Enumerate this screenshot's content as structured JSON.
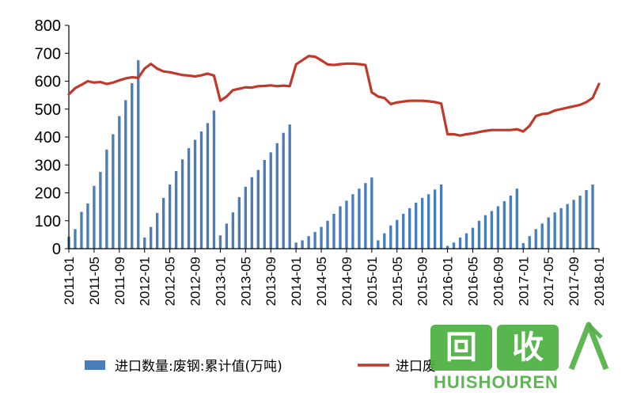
{
  "chart_data": {
    "type": "bar+line",
    "ylim": [
      0,
      800
    ],
    "yticks": [
      "0",
      "100",
      "200",
      "300",
      "400",
      "500",
      "600",
      "700",
      "800"
    ],
    "xticks": [
      "2011-01",
      "2011-05",
      "2011-09",
      "2012-01",
      "2012-05",
      "2012-09",
      "2013-01",
      "2013-05",
      "2013-09",
      "2014-01",
      "2014-05",
      "2014-09",
      "2015-01",
      "2015-05",
      "2015-09",
      "2016-01",
      "2016-05",
      "2016-09",
      "2017-01",
      "2017-05",
      "2017-09",
      "2018-01"
    ],
    "bar_series": {
      "name": "进口数量:废钢:累计值(万吨)",
      "color": "#4a7ebb",
      "values": [
        [
          43,
          70,
          132,
          162,
          225,
          275,
          355,
          410,
          475,
          532,
          593,
          675
        ],
        [
          40,
          78,
          128,
          182,
          230,
          278,
          320,
          360,
          390,
          420,
          450,
          495
        ],
        [
          48,
          90,
          130,
          185,
          222,
          256,
          282,
          318,
          345,
          378,
          415,
          445
        ],
        [
          22,
          30,
          45,
          60,
          78,
          100,
          125,
          152,
          172,
          195,
          215,
          235,
          255
        ],
        [
          22,
          30,
          55,
          83,
          103,
          125,
          145,
          165,
          182,
          195,
          212,
          230
        ],
        [
          10,
          22,
          40,
          55,
          75,
          100,
          120,
          135,
          152,
          170,
          190,
          215
        ],
        [
          20,
          45,
          70,
          90,
          112,
          130,
          145,
          160,
          175,
          190,
          210,
          230
        ]
      ]
    },
    "line_series": {
      "name": "进口废钢均价",
      "color": "#c0392b",
      "points": [
        [
          "2011-01",
          553
        ],
        [
          "2011-02",
          575
        ],
        [
          "2011-03",
          587
        ],
        [
          "2011-04",
          600
        ],
        [
          "2011-05",
          595
        ],
        [
          "2011-06",
          597
        ],
        [
          "2011-07",
          590
        ],
        [
          "2011-08",
          595
        ],
        [
          "2011-09",
          603
        ],
        [
          "2011-10",
          610
        ],
        [
          "2011-11",
          614
        ],
        [
          "2011-12",
          612
        ],
        [
          "2012-01",
          645
        ],
        [
          "2012-02",
          662
        ],
        [
          "2012-03",
          645
        ],
        [
          "2012-04",
          635
        ],
        [
          "2012-05",
          632
        ],
        [
          "2012-06",
          627
        ],
        [
          "2012-07",
          622
        ],
        [
          "2012-08",
          620
        ],
        [
          "2012-09",
          617
        ],
        [
          "2012-10",
          621
        ],
        [
          "2012-11",
          627
        ],
        [
          "2012-12",
          620
        ],
        [
          "2013-01",
          530
        ],
        [
          "2013-02",
          545
        ],
        [
          "2013-03",
          568
        ],
        [
          "2013-04",
          573
        ],
        [
          "2013-05",
          578
        ],
        [
          "2013-06",
          577
        ],
        [
          "2013-07",
          582
        ],
        [
          "2013-08",
          583
        ],
        [
          "2013-09",
          585
        ],
        [
          "2013-10",
          582
        ],
        [
          "2013-11",
          584
        ],
        [
          "2013-12",
          582
        ],
        [
          "2014-01",
          660
        ],
        [
          "2014-02",
          675
        ],
        [
          "2014-03",
          690
        ],
        [
          "2014-04",
          688
        ],
        [
          "2014-05",
          675
        ],
        [
          "2014-06",
          660
        ],
        [
          "2014-07",
          658
        ],
        [
          "2014-08",
          661
        ],
        [
          "2014-09",
          663
        ],
        [
          "2014-10",
          663
        ],
        [
          "2014-11",
          661
        ],
        [
          "2014-12",
          658
        ],
        [
          "2015-01",
          560
        ],
        [
          "2015-02",
          545
        ],
        [
          "2015-03",
          540
        ],
        [
          "2015-04",
          518
        ],
        [
          "2015-05",
          524
        ],
        [
          "2015-06",
          527
        ],
        [
          "2015-07",
          530
        ],
        [
          "2015-08",
          530
        ],
        [
          "2015-09",
          530
        ],
        [
          "2015-10",
          528
        ],
        [
          "2015-11",
          525
        ],
        [
          "2015-12",
          520
        ],
        [
          "2016-01",
          410
        ],
        [
          "2016-02",
          410
        ],
        [
          "2016-03",
          405
        ],
        [
          "2016-04",
          410
        ],
        [
          "2016-05",
          413
        ],
        [
          "2016-06",
          418
        ],
        [
          "2016-07",
          422
        ],
        [
          "2016-08",
          425
        ],
        [
          "2016-09",
          425
        ],
        [
          "2016-10",
          425
        ],
        [
          "2016-11",
          425
        ],
        [
          "2016-12",
          428
        ],
        [
          "2017-01",
          420
        ],
        [
          "2017-02",
          440
        ],
        [
          "2017-03",
          475
        ],
        [
          "2017-04",
          482
        ],
        [
          "2017-05",
          485
        ],
        [
          "2017-06",
          495
        ],
        [
          "2017-07",
          500
        ],
        [
          "2017-08",
          505
        ],
        [
          "2017-09",
          510
        ],
        [
          "2017-10",
          515
        ],
        [
          "2017-11",
          525
        ],
        [
          "2017-12",
          540
        ],
        [
          "2018-01",
          590
        ]
      ]
    },
    "legend": [
      {
        "label": "进口数量:废钢:累计值(万吨)",
        "kind": "bar",
        "color": "#4a7ebb"
      },
      {
        "label": "进口废",
        "kind": "line",
        "color": "#c0392b"
      }
    ],
    "grid": false
  },
  "watermark": {
    "box1": "回",
    "box2": "收",
    "text": "HUISHOUREN"
  }
}
